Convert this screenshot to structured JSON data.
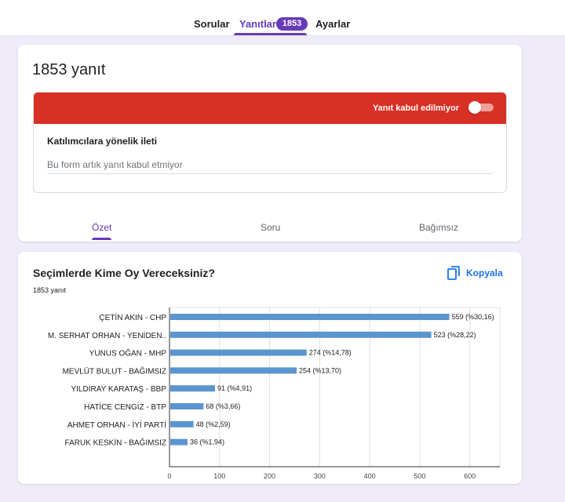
{
  "top_tabs": {
    "questions": "Sorular",
    "responses": "Yanıtlar",
    "responses_badge": "1853",
    "settings": "Ayarlar"
  },
  "summary_card": {
    "title": "1853 yanıt",
    "accepting_label": "Yanıt kabul edilmiyor",
    "accepting_responses": false,
    "message_heading": "Katılımcılara yönelik ileti",
    "message_value": "Bu form artık yanıt kabul etmiyor",
    "tabs": [
      "Özet",
      "Soru",
      "Bağımsız"
    ]
  },
  "question_card": {
    "title": "Seçimlerde Kime Oy Vereceksiniz?",
    "count": "1853 yanıt",
    "copy_label": "Kopyala"
  },
  "colors": {
    "accent": "#673ab7",
    "red_banner": "#d93025",
    "bar": "#5b95cf",
    "link": "#1a73e8"
  },
  "icons": {
    "copy": "copy-icon"
  },
  "chart_data": {
    "type": "bar",
    "orientation": "horizontal",
    "categories": [
      "ÇETİN AKIN - CHP",
      "M. SERHAT ORHAN - YENİDEN..",
      "YUNUS OĞAN - MHP",
      "MEVLÜT BULUT - BAĞIMSIZ",
      "YILDIRAY KARATAŞ - BBP",
      "HATİCE CENGİZ - BTP",
      "AHMET ORHAN - İYİ PARTİ",
      "FARUK KESKİN - BAĞIMSIZ"
    ],
    "values": [
      559,
      523,
      274,
      254,
      91,
      68,
      48,
      36
    ],
    "data_labels": [
      "559 (%30,16)",
      "523 (%28,22)",
      "274 (%14,78)",
      "254 (%13,70)",
      "91 (%4,91)",
      "68 (%3,66)",
      "48 (%2,59)",
      "36 (%1,94)"
    ],
    "xlim": [
      0,
      660
    ],
    "xticks": [
      0,
      100,
      200,
      300,
      400,
      500,
      600
    ],
    "grid": true
  }
}
